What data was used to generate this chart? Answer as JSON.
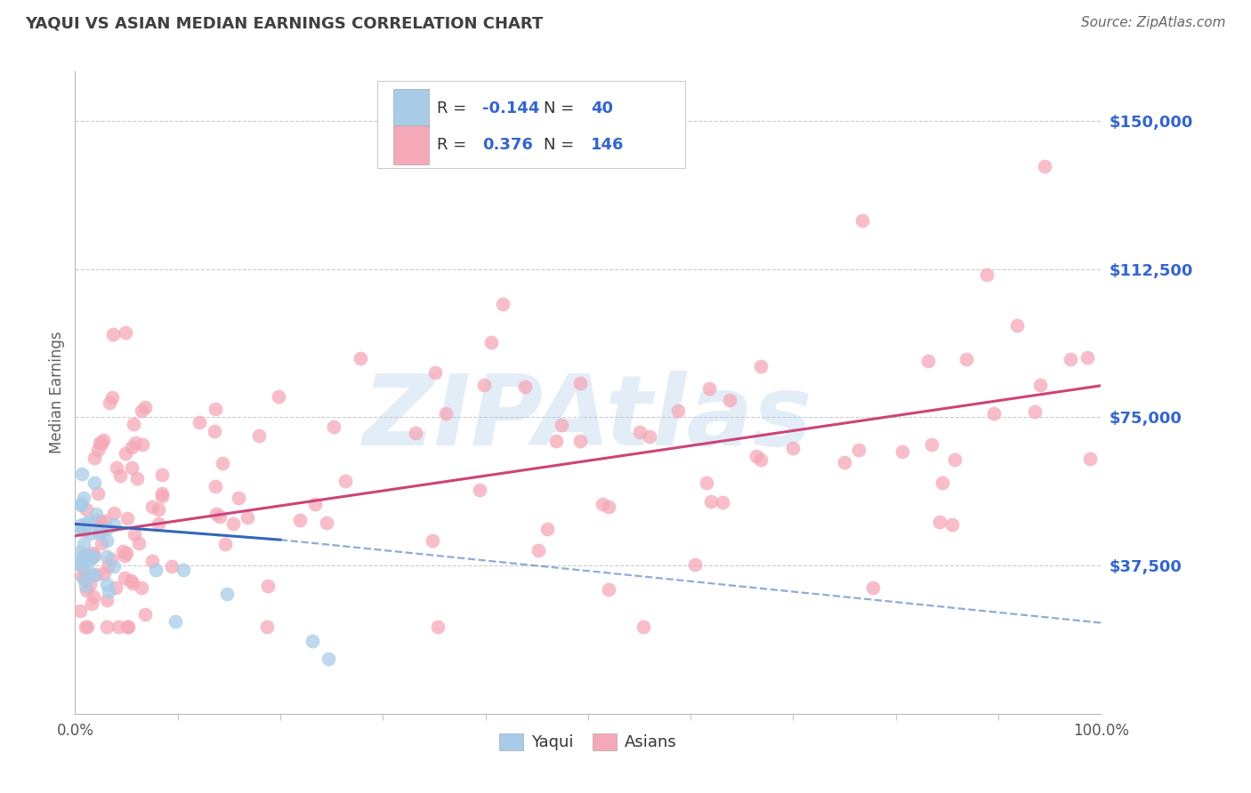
{
  "title": "YAQUI VS ASIAN MEDIAN EARNINGS CORRELATION CHART",
  "source": "Source: ZipAtlas.com",
  "ylabel": "Median Earnings",
  "xlim": [
    0.0,
    1.0
  ],
  "ylim": [
    0,
    162500
  ],
  "yticks": [
    37500,
    75000,
    112500,
    150000
  ],
  "ytick_labels": [
    "$37,500",
    "$75,000",
    "$112,500",
    "$150,000"
  ],
  "background_color": "#ffffff",
  "grid_color": "#cccccc",
  "watermark": "ZIPAtlas",
  "watermark_color": "#aac8e8",
  "yaqui_color": "#a8cce8",
  "asian_color": "#f5a8b8",
  "yaqui_line_color": "#3366bb",
  "asian_line_color": "#cc4477",
  "title_color": "#404040",
  "axis_color": "#606060",
  "ytick_color": "#3366cc",
  "xtick_color": "#555555",
  "R_yaqui": "-0.144",
  "N_yaqui": "40",
  "R_asian": "0.376",
  "N_asian": "146",
  "legend_text_color": "#333333",
  "legend_val_color": "#3366cc"
}
